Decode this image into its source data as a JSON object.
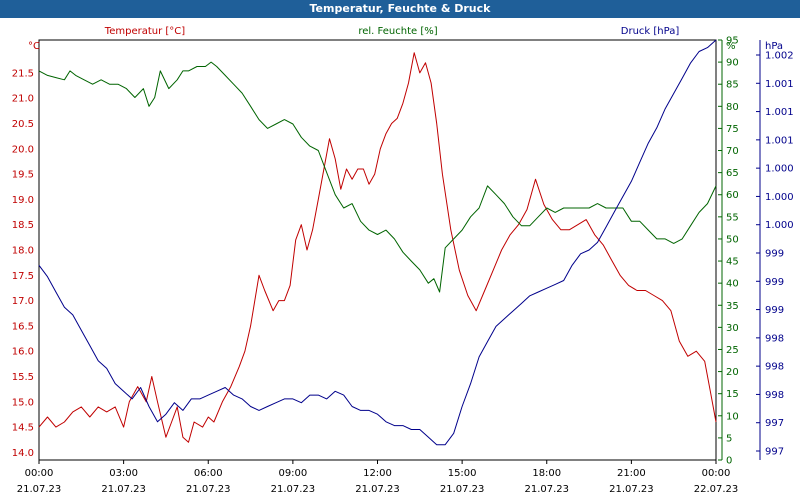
{
  "window": {
    "title": "Temperatur, Feuchte & Druck"
  },
  "chart_data": {
    "type": "line",
    "title": "Temperatur, Feuchte & Druck",
    "x_ticks": [
      {
        "time": "00:00",
        "date": "21.07.23"
      },
      {
        "time": "03:00",
        "date": "21.07.23"
      },
      {
        "time": "06:00",
        "date": "21.07.23"
      },
      {
        "time": "09:00",
        "date": "21.07.23"
      },
      {
        "time": "12:00",
        "date": "21.07.23"
      },
      {
        "time": "15:00",
        "date": "21.07.23"
      },
      {
        "time": "18:00",
        "date": "21.07.23"
      },
      {
        "time": "21:00",
        "date": "21.07.23"
      },
      {
        "time": "00:00",
        "date": "22.07.23"
      }
    ],
    "xlim": [
      0,
      24
    ],
    "axes": {
      "temperature": {
        "label": "Temperatur [°C]",
        "unit_label": "°C",
        "color": "#c00000",
        "ylim": [
          13.85,
          22.15
        ],
        "ticks": [
          "14.0",
          "14.5",
          "15.0",
          "15.5",
          "16.0",
          "16.5",
          "17.0",
          "17.5",
          "18.0",
          "18.5",
          "19.0",
          "19.5",
          "20.0",
          "20.5",
          "21.0",
          "21.5"
        ]
      },
      "humidity": {
        "label": "rel. Feuchte [%]",
        "unit_label": "%",
        "color": "#006400",
        "ylim": [
          0,
          95
        ],
        "ticks": [
          "0",
          "5",
          "10",
          "15",
          "20",
          "25",
          "30",
          "35",
          "40",
          "45",
          "50",
          "55",
          "60",
          "65",
          "70",
          "75",
          "80",
          "85",
          "90",
          "95"
        ]
      },
      "pressure": {
        "label": "Druck [hPa]",
        "unit_label": "hPa",
        "color": "#00008b",
        "ylim": [
          996.6,
          1002.1
        ],
        "tick_labels": [
          "997",
          "997",
          "998",
          "998",
          "998",
          "999",
          "999",
          "999",
          "1.000",
          "1.000",
          "1.000",
          "1.001",
          "1.001",
          "1.001",
          "1.002"
        ]
      }
    },
    "series": [
      {
        "name": "Temperatur [°C]",
        "axis": "temperature",
        "color": "#c00000",
        "x": [
          0,
          0.3,
          0.6,
          0.9,
          1.2,
          1.5,
          1.8,
          2.1,
          2.4,
          2.7,
          3.0,
          3.2,
          3.5,
          3.8,
          4.0,
          4.2,
          4.5,
          4.7,
          4.9,
          5.1,
          5.3,
          5.5,
          5.8,
          6.0,
          6.2,
          6.5,
          6.8,
          7.1,
          7.3,
          7.5,
          7.8,
          8.0,
          8.3,
          8.5,
          8.7,
          8.9,
          9.1,
          9.3,
          9.5,
          9.7,
          9.9,
          10.1,
          10.3,
          10.5,
          10.7,
          10.9,
          11.1,
          11.3,
          11.5,
          11.7,
          11.9,
          12.1,
          12.3,
          12.5,
          12.7,
          12.9,
          13.1,
          13.3,
          13.5,
          13.7,
          13.9,
          14.1,
          14.3,
          14.6,
          14.9,
          15.2,
          15.5,
          15.8,
          16.1,
          16.4,
          16.7,
          17.0,
          17.3,
          17.6,
          17.9,
          18.2,
          18.5,
          18.8,
          19.1,
          19.4,
          19.7,
          20.0,
          20.3,
          20.6,
          20.9,
          21.2,
          21.5,
          21.8,
          22.1,
          22.4,
          22.7,
          23.0,
          23.3,
          23.6,
          23.8,
          24.0
        ],
        "values": [
          14.5,
          14.7,
          14.5,
          14.6,
          14.8,
          14.9,
          14.7,
          14.9,
          14.8,
          14.9,
          14.5,
          15.0,
          15.3,
          15.0,
          15.5,
          15.0,
          14.3,
          14.6,
          14.9,
          14.3,
          14.2,
          14.6,
          14.5,
          14.7,
          14.6,
          15.0,
          15.3,
          15.7,
          16.0,
          16.5,
          17.5,
          17.2,
          16.8,
          17.0,
          17.0,
          17.3,
          18.2,
          18.5,
          18.0,
          18.4,
          19.0,
          19.6,
          20.2,
          19.8,
          19.2,
          19.6,
          19.4,
          19.6,
          19.6,
          19.3,
          19.5,
          20.0,
          20.3,
          20.5,
          20.6,
          20.9,
          21.3,
          21.9,
          21.5,
          21.7,
          21.3,
          20.5,
          19.5,
          18.4,
          17.6,
          17.1,
          16.8,
          17.2,
          17.6,
          18.0,
          18.3,
          18.5,
          18.8,
          19.4,
          18.9,
          18.6,
          18.4,
          18.4,
          18.5,
          18.6,
          18.3,
          18.1,
          17.8,
          17.5,
          17.3,
          17.2,
          17.2,
          17.1,
          17.0,
          16.8,
          16.2,
          15.9,
          16.0,
          15.8,
          15.2,
          14.6
        ]
      },
      {
        "name": "rel. Feuchte [%]",
        "axis": "humidity",
        "color": "#006400",
        "x": [
          0,
          0.3,
          0.6,
          0.9,
          1.1,
          1.3,
          1.6,
          1.9,
          2.2,
          2.5,
          2.8,
          3.1,
          3.4,
          3.7,
          3.9,
          4.1,
          4.3,
          4.6,
          4.9,
          5.1,
          5.3,
          5.6,
          5.9,
          6.1,
          6.3,
          6.6,
          6.9,
          7.2,
          7.5,
          7.8,
          8.1,
          8.4,
          8.7,
          9.0,
          9.3,
          9.6,
          9.9,
          10.2,
          10.5,
          10.8,
          11.1,
          11.4,
          11.7,
          12.0,
          12.3,
          12.6,
          12.9,
          13.2,
          13.5,
          13.8,
          14.0,
          14.2,
          14.4,
          14.7,
          15.0,
          15.3,
          15.6,
          15.9,
          16.2,
          16.5,
          16.8,
          17.1,
          17.4,
          17.7,
          18.0,
          18.3,
          18.6,
          18.9,
          19.2,
          19.5,
          19.8,
          20.1,
          20.4,
          20.7,
          21.0,
          21.3,
          21.6,
          21.9,
          22.2,
          22.5,
          22.8,
          23.1,
          23.4,
          23.7,
          24.0
        ],
        "values": [
          88,
          87,
          86.5,
          86,
          88,
          87,
          86,
          85,
          86,
          85,
          85,
          84,
          82,
          84,
          80,
          82,
          88,
          84,
          86,
          88,
          88,
          89,
          89,
          90,
          89,
          87,
          85,
          83,
          80,
          77,
          75,
          76,
          77,
          76,
          73,
          71,
          70,
          65,
          60,
          57,
          58,
          54,
          52,
          51,
          52,
          50,
          47,
          45,
          43,
          40,
          41,
          38,
          48,
          50,
          52,
          55,
          57,
          62,
          60,
          58,
          55,
          53,
          53,
          55,
          57,
          56,
          57,
          57,
          57,
          57,
          58,
          57,
          57,
          57,
          54,
          54,
          52,
          50,
          50,
          49,
          50,
          53,
          56,
          58,
          62
        ]
      },
      {
        "name": "Druck [hPa]",
        "axis": "pressure",
        "color": "#00008b",
        "x": [
          0,
          0.3,
          0.6,
          0.9,
          1.2,
          1.5,
          1.8,
          2.1,
          2.4,
          2.7,
          3.0,
          3.3,
          3.6,
          3.9,
          4.2,
          4.5,
          4.8,
          5.1,
          5.4,
          5.7,
          6.0,
          6.3,
          6.6,
          6.9,
          7.2,
          7.5,
          7.8,
          8.1,
          8.4,
          8.7,
          9.0,
          9.3,
          9.6,
          9.9,
          10.2,
          10.5,
          10.8,
          11.1,
          11.4,
          11.7,
          12.0,
          12.3,
          12.6,
          12.9,
          13.2,
          13.5,
          13.8,
          14.1,
          14.4,
          14.7,
          15.0,
          15.3,
          15.6,
          15.9,
          16.2,
          16.5,
          16.8,
          17.1,
          17.4,
          17.7,
          18.0,
          18.3,
          18.6,
          18.9,
          19.2,
          19.5,
          19.8,
          20.1,
          20.4,
          20.7,
          21.0,
          21.3,
          21.6,
          21.9,
          22.2,
          22.5,
          22.8,
          23.1,
          23.4,
          23.7,
          24.0
        ],
        "values": [
          999.15,
          999.0,
          998.8,
          998.6,
          998.5,
          998.3,
          998.1,
          997.9,
          997.8,
          997.6,
          997.5,
          997.4,
          997.55,
          997.3,
          997.1,
          997.2,
          997.35,
          997.25,
          997.4,
          997.4,
          997.45,
          997.5,
          997.55,
          997.45,
          997.4,
          997.3,
          997.25,
          997.3,
          997.35,
          997.4,
          997.4,
          997.35,
          997.45,
          997.45,
          997.4,
          997.5,
          997.45,
          997.3,
          997.25,
          997.25,
          997.2,
          997.1,
          997.05,
          997.05,
          997.0,
          997.0,
          996.9,
          996.8,
          996.8,
          996.95,
          997.3,
          997.6,
          997.95,
          998.15,
          998.35,
          998.45,
          998.55,
          998.65,
          998.75,
          998.8,
          998.85,
          998.9,
          998.95,
          999.15,
          999.3,
          999.35,
          999.45,
          999.65,
          999.85,
          1000.05,
          1000.25,
          1000.5,
          1000.75,
          1000.95,
          1001.2,
          1001.4,
          1001.6,
          1001.8,
          1001.95,
          1002.0,
          1002.1
        ]
      }
    ],
    "grid": true,
    "legend": "top"
  }
}
